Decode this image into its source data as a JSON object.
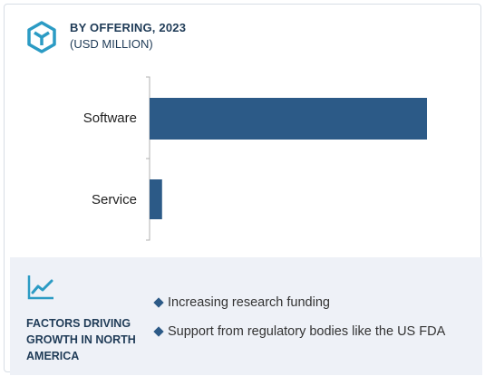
{
  "header": {
    "title": "BY OFFERING, 2023",
    "subtitle": "(USD MILLION)",
    "icon": "cube-logo-icon"
  },
  "colors": {
    "bar": "#2c5a87",
    "accent": "#2b9bc4",
    "heading": "#1f3b57",
    "footer_bg": "#eef1f7"
  },
  "chart_data": {
    "type": "bar",
    "orientation": "horizontal",
    "title": "BY OFFERING, 2023",
    "subtitle": "(USD MILLION)",
    "categories": [
      "Software",
      "Service"
    ],
    "values": [
      100,
      4.5
    ],
    "xlim": [
      0,
      100
    ],
    "grid": false,
    "legend": "none"
  },
  "footer": {
    "icon": "trend-line-icon",
    "title": "FACTORS DRIVING GROWTH IN NORTH AMERICA",
    "factors": [
      "Increasing research funding",
      "Support from regulatory bodies like the US FDA"
    ]
  }
}
